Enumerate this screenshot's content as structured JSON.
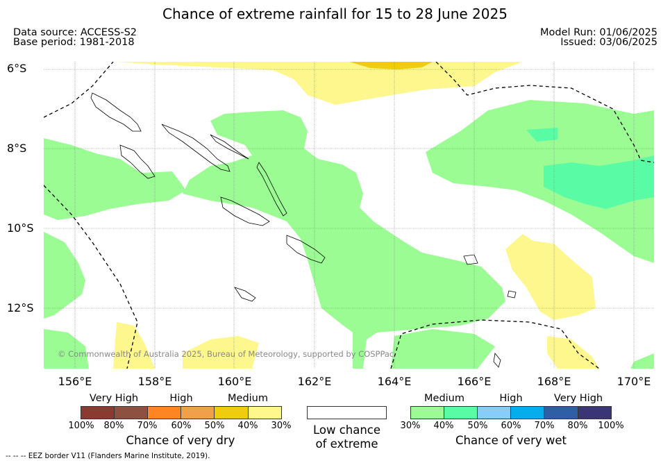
{
  "title": "Chance of extreme rainfall for 15 to 28 June 2025",
  "info_left": [
    "Data source: ACCESS-S2",
    "Base period: 1981-2018"
  ],
  "info_right": [
    "Model Run: 01/06/2025",
    "Issued: 03/06/2025"
  ],
  "map": {
    "lat_labels": [
      "6°S",
      "8°S",
      "10°S",
      "12°S"
    ],
    "lon_labels": [
      "156°E",
      "158°E",
      "160°E",
      "162°E",
      "164°E",
      "166°E",
      "168°E",
      "170°E"
    ],
    "copyright": "© Commonwealth of Australia 2025, Bureau of Meteorology, supported by COSPPac",
    "colors": {
      "medium_wet": "#9afc93",
      "high_wet": "#59fca4",
      "medium_dry": "#fdf78e",
      "high_dry": "#efcd0c",
      "coast": "#000000",
      "eez": "#000000"
    }
  },
  "legend_dry": {
    "title": "Chance of very dry",
    "categories": [
      "Very High",
      "High",
      "Medium"
    ],
    "ticks": [
      "100%",
      "80%",
      "70%",
      "60%",
      "50%",
      "40%",
      "30%"
    ],
    "colors": [
      "#8b3a32",
      "#8e5040",
      "#fe8523",
      "#f09f4b",
      "#efcd0c",
      "#fdf78e"
    ]
  },
  "legend_none": {
    "label_line1": "Low chance",
    "label_line2": "of extreme"
  },
  "legend_wet": {
    "title": "Chance of very wet",
    "categories": [
      "Medium",
      "High",
      "Very High"
    ],
    "ticks": [
      "30%",
      "40%",
      "50%",
      "60%",
      "70%",
      "80%",
      "100%"
    ],
    "colors": [
      "#9afc93",
      "#59fca4",
      "#87cdf9",
      "#05aee9",
      "#2e5ea5",
      "#3a3574"
    ]
  },
  "footnote": "--  --  -- EEZ border V11 (Flanders Marine Institute, 2019)."
}
